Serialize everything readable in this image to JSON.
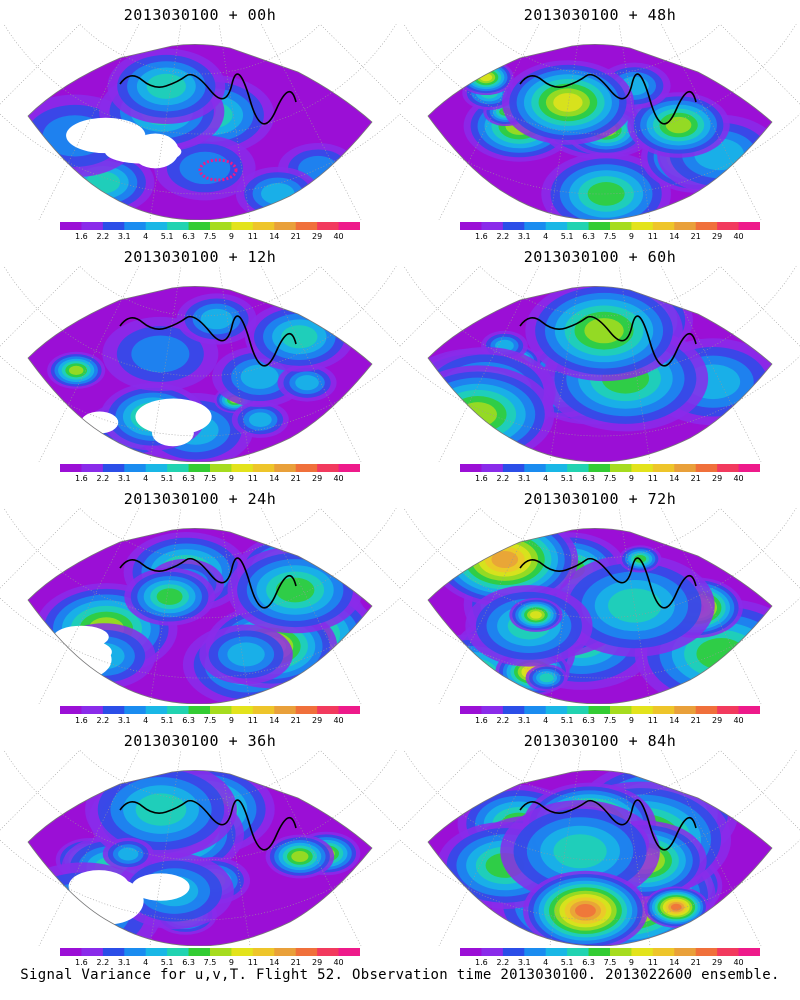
{
  "figure": {
    "caption": "Signal Variance for u,v,T. Flight 52. Observation time 2013030100. 2013022600 ensemble."
  },
  "panels": [
    {
      "title": "2013030100 + 00h",
      "intensity": 0.25,
      "seed": 1,
      "hotspot": true
    },
    {
      "title": "2013030100 + 48h",
      "intensity": 0.6,
      "seed": 2,
      "hotspot": false
    },
    {
      "title": "2013030100 + 12h",
      "intensity": 0.4,
      "seed": 3,
      "hotspot": false
    },
    {
      "title": "2013030100 + 60h",
      "intensity": 0.68,
      "seed": 4,
      "hotspot": false
    },
    {
      "title": "2013030100 + 24h",
      "intensity": 0.48,
      "seed": 5,
      "hotspot": false
    },
    {
      "title": "2013030100 + 72h",
      "intensity": 0.76,
      "seed": 6,
      "hotspot": false
    },
    {
      "title": "2013030100 + 36h",
      "intensity": 0.55,
      "seed": 7,
      "hotspot": false
    },
    {
      "title": "2013030100 + 84h",
      "intensity": 0.85,
      "seed": 8,
      "hotspot": false
    }
  ],
  "colorbar": {
    "labels": [
      "1.6",
      "2.2",
      "3.1",
      "4",
      "5.1",
      "6.3",
      "7.5",
      "9",
      "11",
      "14",
      "21",
      "29",
      "40"
    ],
    "colors": [
      "#9b0fd6",
      "#8a2bea",
      "#2b4ee8",
      "#1a8cf0",
      "#19b7e6",
      "#21d3b1",
      "#33cc33",
      "#a6dc1e",
      "#e3e31c",
      "#eec52a",
      "#e9a03a",
      "#f0703b",
      "#f23a5e",
      "#ee1a8a"
    ]
  }
}
